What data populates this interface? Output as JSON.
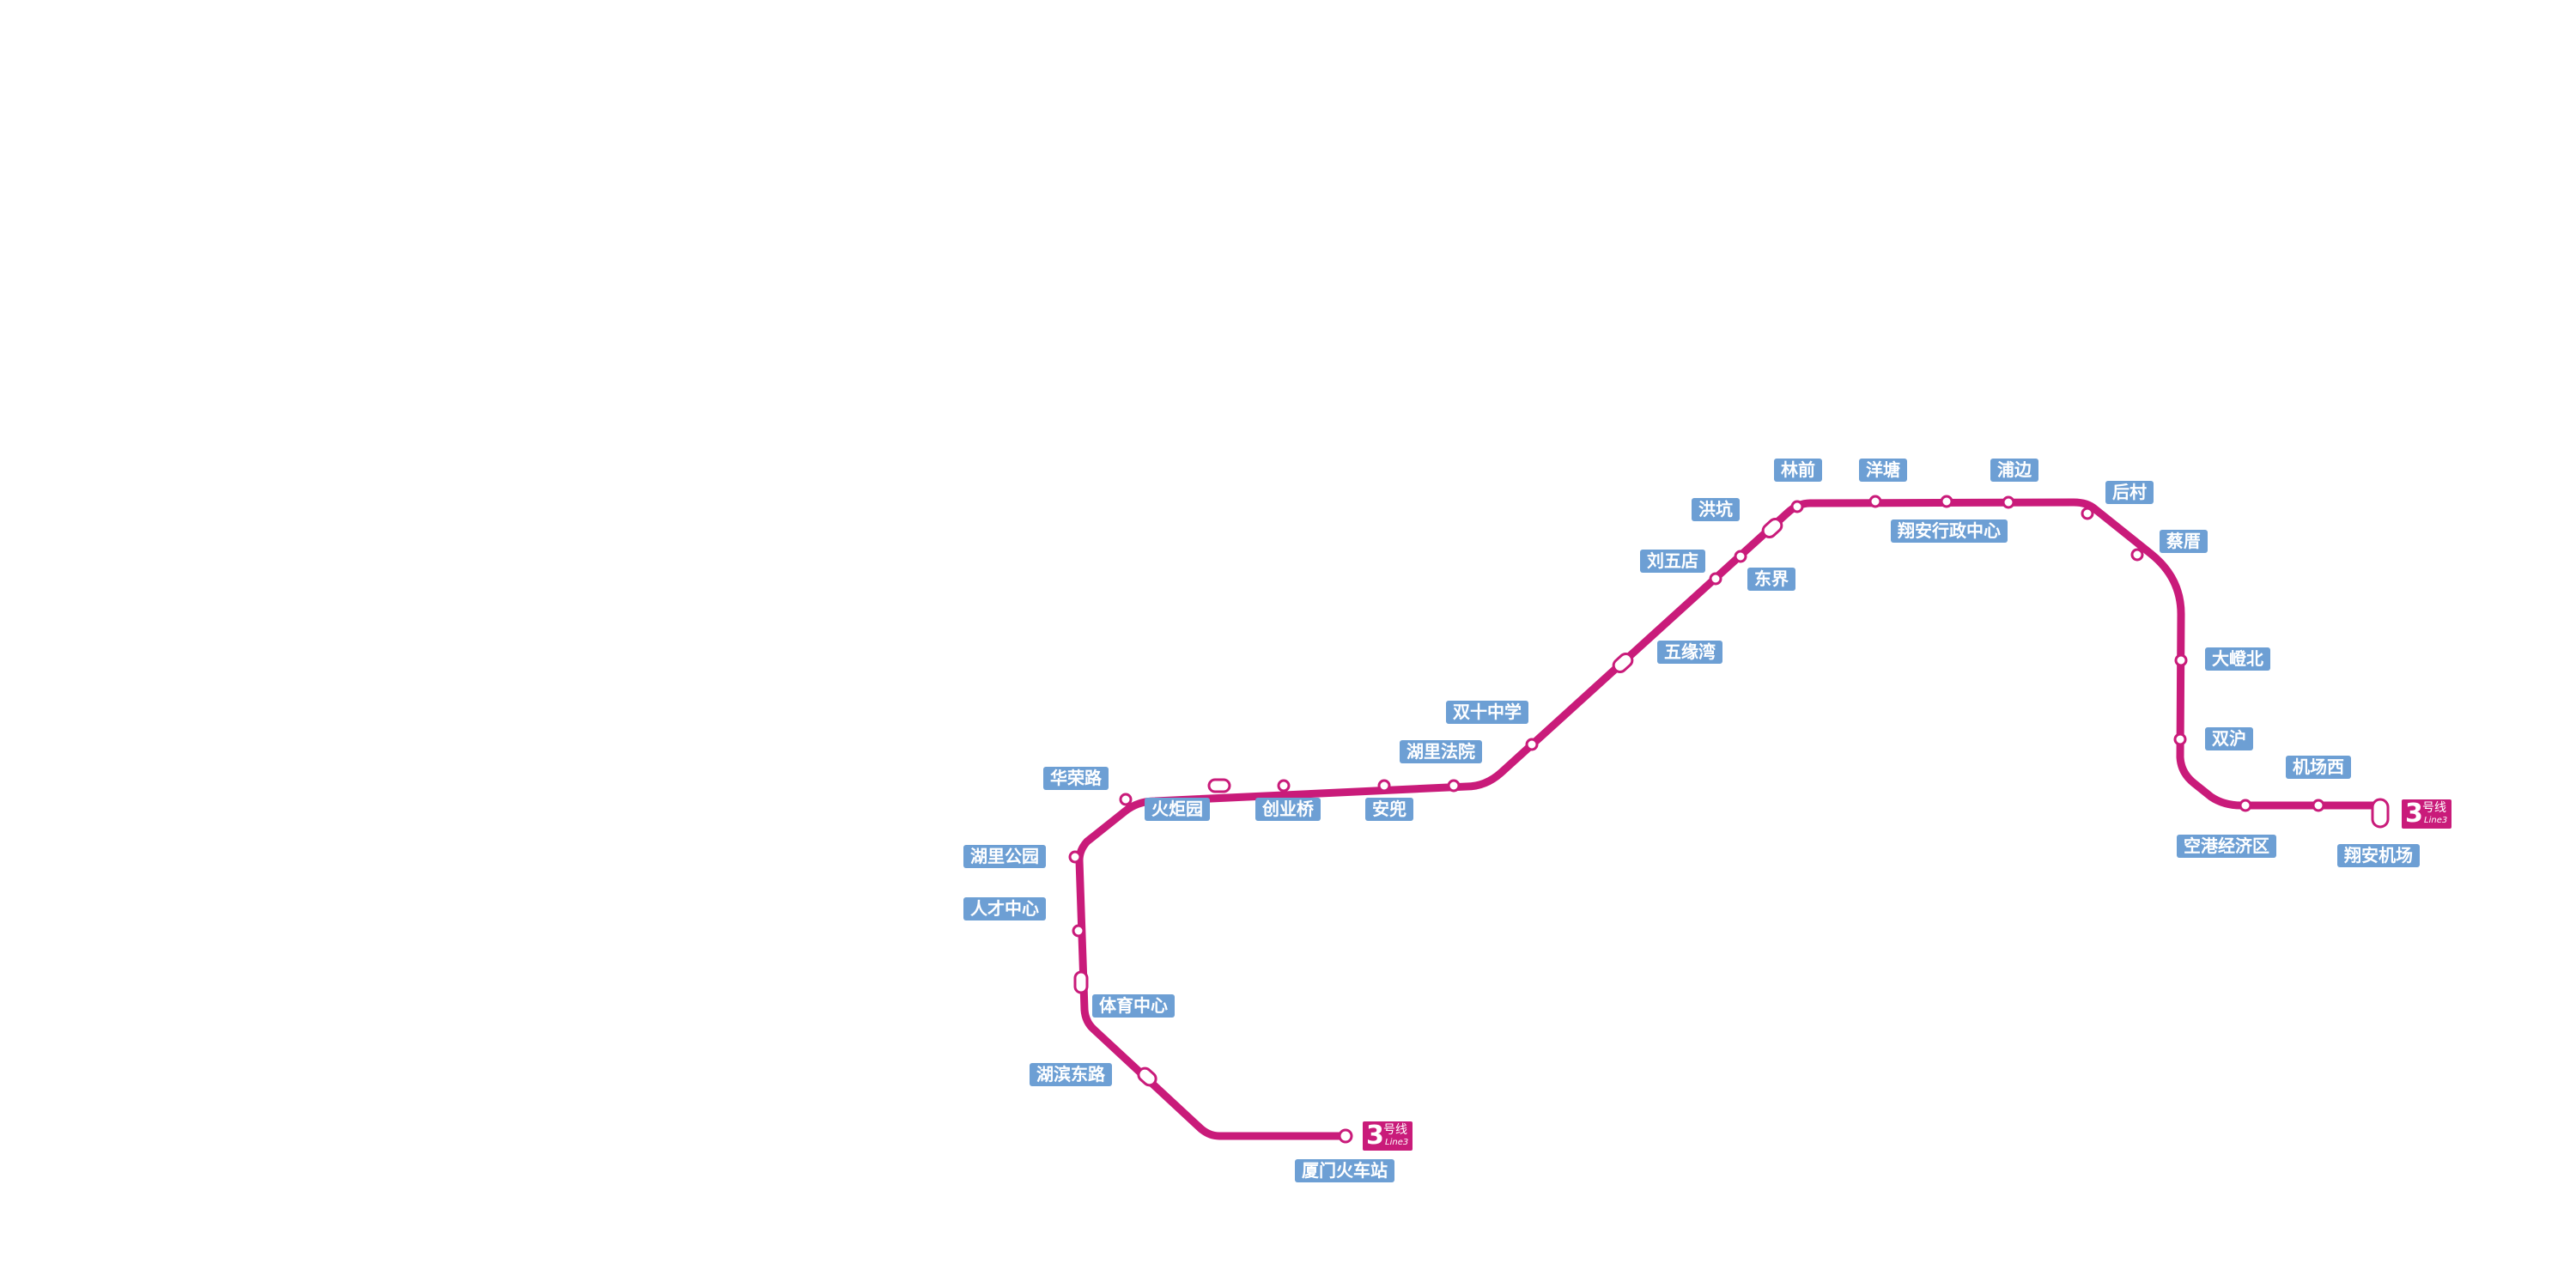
{
  "line": {
    "color": "#c91b7a",
    "badge": {
      "number": "3",
      "name_zh": "号线",
      "name_en": "Line3"
    }
  },
  "label_color": "#6d9fd4",
  "stations": [
    {
      "id": "xiamen-railway-station",
      "name": "厦门火车站"
    },
    {
      "id": "hubin-east-road",
      "name": "湖滨东路"
    },
    {
      "id": "sports-center",
      "name": "体育中心"
    },
    {
      "id": "talent-center",
      "name": "人才中心"
    },
    {
      "id": "huli-park",
      "name": "湖里公园"
    },
    {
      "id": "huarong-road",
      "name": "华荣路"
    },
    {
      "id": "huojuyuan",
      "name": "火炬园"
    },
    {
      "id": "chuangyeqiao",
      "name": "创业桥"
    },
    {
      "id": "andou",
      "name": "安兜"
    },
    {
      "id": "huli-court",
      "name": "湖里法院"
    },
    {
      "id": "shuangshi-middle-school",
      "name": "双十中学"
    },
    {
      "id": "wuyuanwan",
      "name": "五缘湾"
    },
    {
      "id": "liuwudian",
      "name": "刘五店"
    },
    {
      "id": "dongjie",
      "name": "东界"
    },
    {
      "id": "hongkeng",
      "name": "洪坑"
    },
    {
      "id": "linqian",
      "name": "林前"
    },
    {
      "id": "yangtang",
      "name": "洋塘"
    },
    {
      "id": "xiangan-admin-center",
      "name": "翔安行政中心"
    },
    {
      "id": "pubian",
      "name": "浦边"
    },
    {
      "id": "houcun",
      "name": "后村"
    },
    {
      "id": "caicuo",
      "name": "蔡厝"
    },
    {
      "id": "dadengbei",
      "name": "大嶝北"
    },
    {
      "id": "shuanghu",
      "name": "双沪"
    },
    {
      "id": "airport-economic-zone",
      "name": "空港经济区"
    },
    {
      "id": "airport-west",
      "name": "机场西"
    },
    {
      "id": "xiangan-airport",
      "name": "翔安机场"
    }
  ]
}
